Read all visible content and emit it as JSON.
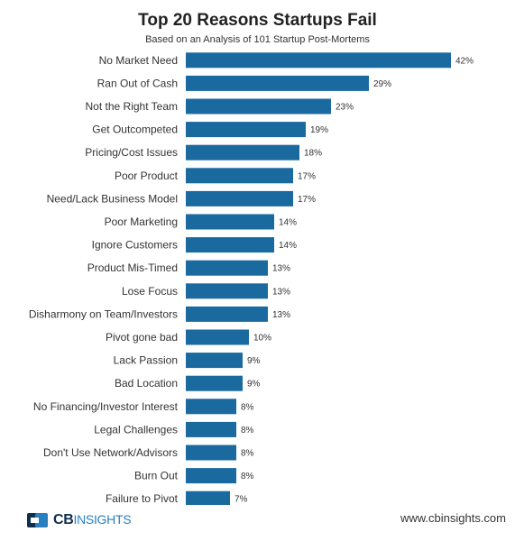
{
  "chart_data": {
    "type": "bar",
    "orientation": "horizontal",
    "title": "Top 20 Reasons Startups Fail",
    "subtitle": "Based on an Analysis of 101 Startup Post-Mortems",
    "categories": [
      "No Market Need",
      "Ran Out of Cash",
      "Not the Right Team",
      "Get Outcompeted",
      "Pricing/Cost Issues",
      "Poor Product",
      "Need/Lack Business Model",
      "Poor Marketing",
      "Ignore Customers",
      "Product Mis-Timed",
      "Lose Focus",
      "Disharmony on Team/Investors",
      "Pivot gone bad",
      "Lack Passion",
      "Bad Location",
      "No Financing/Investor Interest",
      "Legal Challenges",
      "Don't Use Network/Advisors",
      "Burn Out",
      "Failure to Pivot"
    ],
    "values": [
      42,
      29,
      23,
      19,
      18,
      17,
      17,
      14,
      14,
      13,
      13,
      13,
      10,
      9,
      9,
      8,
      8,
      8,
      8,
      7
    ],
    "value_labels": [
      "42%",
      "29%",
      "23%",
      "19%",
      "18%",
      "17%",
      "17%",
      "14%",
      "14%",
      "13%",
      "13%",
      "13%",
      "10%",
      "9%",
      "9%",
      "8%",
      "8%",
      "8%",
      "8%",
      "7%"
    ],
    "xlim": [
      0,
      42
    ],
    "grid": false,
    "bar_color": "#1a6aa0"
  },
  "footer": {
    "logo_cb": "CB",
    "logo_insights": "INSIGHTS",
    "url": "www.cbinsights.com"
  },
  "colors": {
    "logo_dark": "#0f2f4f",
    "logo_light": "#2a7fc0"
  }
}
